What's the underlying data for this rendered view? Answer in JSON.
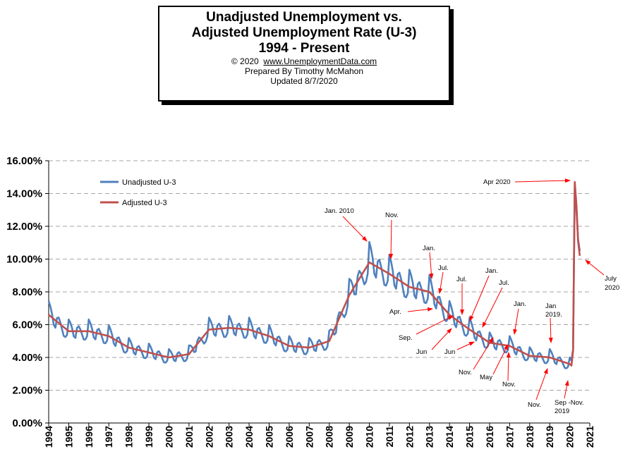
{
  "title": {
    "line1": "Unadjusted Unemployment vs.",
    "line2": "Adjusted Unemployment Rate (U-3)",
    "line3": "1994 - Present",
    "copyright_prefix": "© 2020",
    "copyright_link": "www.UnemploymentData.com",
    "prepared": "Prepared  By Timothy McMahon",
    "updated": "Updated  8/7/2020"
  },
  "colors": {
    "unadjusted": "#4f81bd",
    "adjusted": "#c0504d",
    "arrow": "#ff0000",
    "grid": "#a6a6a6"
  },
  "chart_data": {
    "type": "line",
    "title": "Unadjusted Unemployment vs. Adjusted Unemployment Rate (U-3) 1994 - Present",
    "xlabel": "",
    "ylabel": "",
    "xlim": [
      1994,
      2021
    ],
    "ylim": [
      0,
      16
    ],
    "ytick_labels": [
      "0.00%",
      "2.00%",
      "4.00%",
      "6.00%",
      "8.00%",
      "10.00%",
      "12.00%",
      "14.00%",
      "16.00%"
    ],
    "xtick_labels": [
      "1994",
      "1995",
      "1996",
      "1997",
      "1998",
      "1999",
      "2000",
      "2001",
      "2002",
      "2003",
      "2004",
      "2005",
      "2006",
      "2007",
      "2008",
      "2009",
      "2010",
      "2011",
      "2012",
      "2013",
      "2014",
      "2015",
      "2016",
      "2017",
      "2018",
      "2019",
      "2020",
      "2021"
    ],
    "grid": true,
    "legend_position": "top-left",
    "adjusted_annual": {
      "years": [
        1994,
        1995,
        1996,
        1997,
        1998,
        1999,
        2000,
        2001,
        2002,
        2003,
        2004,
        2005,
        2006,
        2007,
        2008,
        2009,
        2010,
        2011,
        2012,
        2013,
        2014,
        2015,
        2016,
        2017,
        2018,
        2019,
        2020
      ],
      "start_values": [
        6.6,
        5.6,
        5.6,
        5.3,
        4.6,
        4.3,
        4.0,
        4.2,
        5.7,
        5.8,
        5.7,
        5.3,
        4.7,
        4.6,
        5.0,
        7.8,
        9.8,
        9.1,
        8.3,
        8.0,
        6.6,
        5.7,
        4.9,
        4.7,
        4.1,
        4.0,
        3.6
      ]
    },
    "unadjusted_seasonal_offsets": [
      0.7,
      0.5,
      0.2,
      -0.3,
      -0.4,
      0.2,
      0.3,
      0.1,
      -0.2,
      -0.5,
      -0.5,
      -0.3
    ],
    "pandemic_2020": {
      "x": [
        2020.0,
        2020.083,
        2020.167,
        2020.25,
        2020.333,
        2020.417,
        2020.5
      ],
      "adjusted": [
        3.6,
        3.5,
        4.4,
        14.7,
        13.3,
        11.1,
        10.2
      ],
      "unadjusted": [
        4.0,
        3.8,
        4.5,
        14.4,
        13.0,
        11.2,
        10.5
      ]
    },
    "series": [
      {
        "name": "Unadjusted U-3"
      },
      {
        "name": "Adjusted U-3"
      }
    ],
    "annotations": [
      {
        "text": "Apr 2020"
      },
      {
        "text": "July"
      },
      {
        "text": "2020"
      },
      {
        "text": "Jan. 2010"
      },
      {
        "text": "Nov."
      },
      {
        "text": "Jan."
      },
      {
        "text": "Jul."
      },
      {
        "text": "Apr."
      },
      {
        "text": "Jul."
      },
      {
        "text": "Jan."
      },
      {
        "text": "Jul."
      },
      {
        "text": "Sep."
      },
      {
        "text": "Jun"
      },
      {
        "text": "Jun"
      },
      {
        "text": "Jan."
      },
      {
        "text": "Nov."
      },
      {
        "text": "May"
      },
      {
        "text": "Nov."
      },
      {
        "text": "Jan"
      },
      {
        "text": "2019."
      },
      {
        "text": "Nov."
      },
      {
        "text": "Sep -Nov."
      },
      {
        "text": "2019"
      }
    ]
  }
}
